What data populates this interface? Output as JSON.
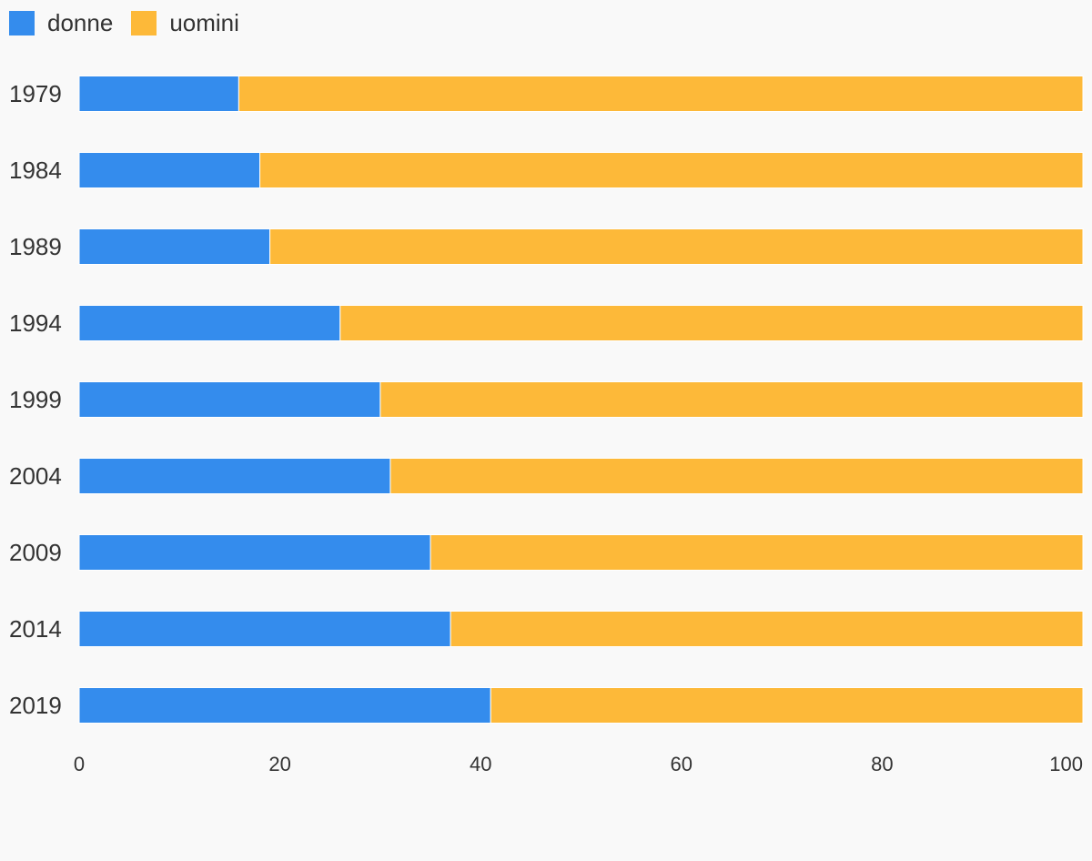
{
  "chart_data": {
    "type": "bar",
    "orientation": "horizontal",
    "stacked": true,
    "categories": [
      "1979",
      "1984",
      "1989",
      "1994",
      "1999",
      "2004",
      "2009",
      "2014",
      "2019"
    ],
    "series": [
      {
        "name": "donne",
        "color": "#348ced",
        "values": [
          15.9,
          18.0,
          19.0,
          26.0,
          30.0,
          31.0,
          35.0,
          37.0,
          41.0
        ]
      },
      {
        "name": "uomini",
        "color": "#fdb939",
        "values": [
          84.1,
          82.0,
          81.0,
          74.0,
          70.0,
          69.0,
          65.0,
          63.0,
          59.0
        ]
      }
    ],
    "xlim": [
      0,
      100
    ],
    "xticks": [
      "0",
      "20",
      "40",
      "60",
      "80",
      "100"
    ],
    "legend": "top-left",
    "grid": false
  }
}
